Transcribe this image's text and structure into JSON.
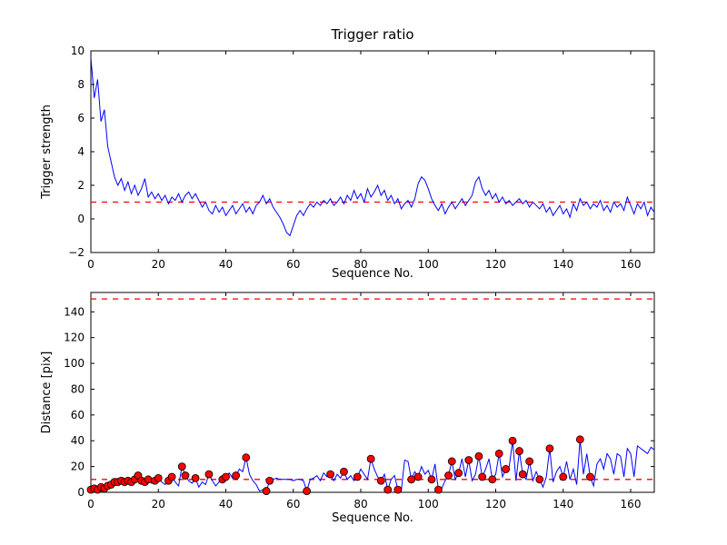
{
  "figure": {
    "title": "Trigger ratio",
    "background": "#ffffff",
    "line_color": "#0000ff",
    "threshold_color": "#ff0000",
    "marker_face": "#ff0000",
    "marker_edge": "#000000"
  },
  "chart_data": [
    {
      "type": "line",
      "name": "trigger-ratio",
      "title": "Trigger ratio",
      "xlabel": "Sequence No.",
      "ylabel": "Trigger strength",
      "xlim": [
        0,
        167
      ],
      "ylim": [
        -2,
        10
      ],
      "xticks": [
        0,
        20,
        40,
        60,
        80,
        100,
        120,
        140,
        160
      ],
      "yticks": [
        -2,
        0,
        2,
        4,
        6,
        8,
        10
      ],
      "grid": false,
      "legend": "none",
      "reference_lines": [
        {
          "y": 1,
          "color": "#ff0000",
          "style": "dashed"
        }
      ],
      "series": [
        {
          "name": "trigger-strength",
          "color": "#0000ff",
          "values": [
            9.6,
            7.2,
            8.3,
            5.8,
            6.5,
            4.3,
            3.4,
            2.5,
            2.0,
            2.4,
            1.7,
            2.2,
            1.5,
            2.0,
            1.4,
            1.8,
            2.4,
            1.3,
            1.6,
            1.2,
            1.5,
            1.1,
            1.4,
            0.9,
            1.3,
            1.1,
            1.5,
            1.0,
            1.4,
            1.6,
            1.2,
            1.5,
            1.1,
            0.7,
            1.0,
            0.5,
            0.3,
            0.8,
            0.4,
            0.7,
            0.2,
            0.5,
            0.8,
            0.3,
            0.6,
            0.9,
            0.4,
            0.7,
            0.3,
            0.8,
            1.0,
            1.4,
            0.9,
            1.2,
            0.7,
            0.4,
            0.1,
            -0.3,
            -0.8,
            -1.0,
            -0.4,
            0.2,
            0.5,
            0.2,
            0.6,
            0.9,
            0.7,
            1.0,
            0.8,
            1.1,
            0.9,
            1.2,
            0.8,
            1.0,
            1.3,
            0.9,
            1.4,
            1.1,
            1.7,
            1.2,
            1.5,
            1.0,
            1.8,
            1.3,
            1.6,
            2.0,
            1.4,
            1.7,
            1.1,
            1.4,
            0.9,
            1.2,
            0.6,
            0.9,
            1.1,
            0.7,
            1.2,
            2.1,
            2.5,
            2.3,
            1.8,
            1.2,
            0.8,
            0.5,
            0.9,
            0.3,
            0.7,
            1.0,
            0.6,
            0.9,
            1.2,
            0.8,
            1.1,
            1.4,
            2.2,
            2.5,
            1.8,
            1.4,
            1.7,
            1.2,
            1.5,
            1.0,
            1.3,
            0.9,
            1.1,
            0.8,
            1.0,
            1.2,
            0.9,
            1.1,
            0.7,
            1.0,
            0.8,
            0.6,
            0.9,
            0.4,
            0.7,
            0.2,
            0.5,
            0.8,
            0.3,
            0.6,
            0.1,
            0.9,
            0.5,
            1.2,
            0.8,
            1.0,
            0.6,
            0.9,
            0.7,
            1.1,
            0.5,
            0.8,
            0.4,
            1.0,
            0.7,
            0.9,
            0.5,
            1.3,
            0.8,
            0.3,
            0.9,
            0.6,
            1.0,
            0.2,
            0.7,
            0.4
          ]
        }
      ]
    },
    {
      "type": "line",
      "name": "distance",
      "title": "",
      "xlabel": "Sequence No.",
      "ylabel": "Distance [pix]",
      "xlim": [
        0,
        167
      ],
      "ylim": [
        0,
        155
      ],
      "xticks": [
        0,
        20,
        40,
        60,
        80,
        100,
        120,
        140,
        160
      ],
      "yticks": [
        0,
        20,
        40,
        60,
        80,
        100,
        120,
        140
      ],
      "grid": false,
      "legend": "none",
      "reference_lines": [
        {
          "y": 150,
          "color": "#ff0000",
          "style": "dashed"
        },
        {
          "y": 10,
          "color": "#ff0000",
          "style": "dashed"
        }
      ],
      "series": [
        {
          "name": "distance-pix",
          "color": "#0000ff",
          "values": [
            2,
            3,
            2,
            4,
            3,
            5,
            6,
            8,
            8,
            9,
            8,
            9,
            8,
            10,
            13,
            9,
            8,
            10,
            7,
            9,
            11,
            8,
            6,
            9,
            12,
            8,
            5,
            20,
            13,
            9,
            7,
            11,
            4,
            8,
            6,
            14,
            9,
            5,
            8,
            10,
            12,
            15,
            11,
            13,
            18,
            16,
            27,
            14,
            9,
            6,
            1,
            2,
            1,
            9,
            10,
            11,
            10,
            10,
            10,
            10,
            9,
            10,
            10,
            9,
            1,
            10,
            11,
            13,
            9,
            15,
            12,
            14,
            9,
            14,
            11,
            16,
            10,
            13,
            9,
            12,
            18,
            14,
            10,
            26,
            18,
            12,
            9,
            14,
            2,
            10,
            13,
            2,
            1,
            25,
            24,
            10,
            16,
            12,
            20,
            14,
            17,
            10,
            22,
            2,
            3,
            9,
            13,
            24,
            10,
            15,
            26,
            12,
            25,
            9,
            14,
            28,
            12,
            18,
            26,
            10,
            14,
            30,
            12,
            18,
            20,
            40,
            9,
            32,
            14,
            10,
            24,
            9,
            16,
            10,
            4,
            12,
            34,
            8,
            16,
            20,
            12,
            24,
            10,
            18,
            6,
            41,
            14,
            30,
            12,
            5,
            22,
            26,
            18,
            30,
            26,
            14,
            30,
            28,
            12,
            34,
            30,
            12,
            36,
            34,
            32,
            30,
            35,
            33
          ]
        }
      ],
      "markers": {
        "face": "#ff0000",
        "edge": "#000000",
        "radius": 4,
        "indices": [
          0,
          1,
          2,
          3,
          4,
          5,
          6,
          7,
          8,
          9,
          10,
          11,
          12,
          13,
          14,
          15,
          16,
          17,
          19,
          20,
          23,
          24,
          27,
          28,
          31,
          35,
          39,
          40,
          43,
          46,
          52,
          53,
          64,
          71,
          75,
          79,
          83,
          86,
          88,
          91,
          95,
          97,
          101,
          103,
          106,
          107,
          109,
          112,
          115,
          116,
          119,
          121,
          123,
          125,
          127,
          128,
          130,
          133,
          136,
          140,
          145,
          148
        ]
      }
    }
  ]
}
